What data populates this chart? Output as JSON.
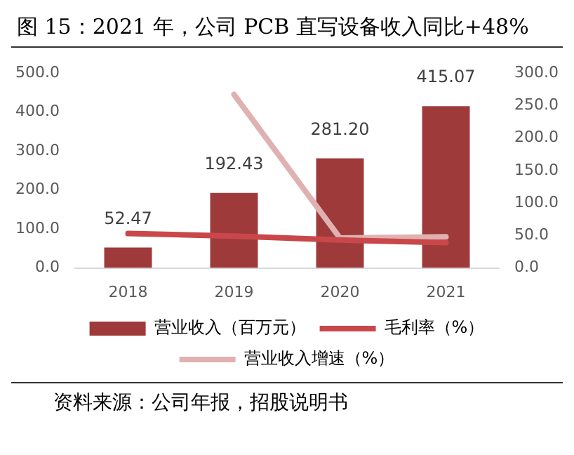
{
  "chart_data": {
    "type": "bar",
    "title": "图 15：2021 年，公司 PCB 直写设备收入同比+48%",
    "categories": [
      "2018",
      "2019",
      "2020",
      "2021"
    ],
    "series": [
      {
        "name": "营业收入（百万元）",
        "color": "#9e3a3a",
        "values": [
          52.47,
          192.43,
          281.2,
          415.07
        ]
      },
      {
        "name": "毛利率（%）",
        "type": "line",
        "axis": "y2",
        "color": "#c9474a",
        "values": [
          53,
          49,
          43,
          39
        ]
      },
      {
        "name": "营业收入增速（%）",
        "type": "line",
        "axis": "y2",
        "color": "#e0b1b1",
        "values": [
          null,
          267,
          46,
          48
        ]
      }
    ],
    "ylim": [
      0,
      500
    ],
    "yticks": [
      {
        "value": 0,
        "label": "0.0"
      },
      {
        "value": 100,
        "label": "100.0"
      },
      {
        "value": 200,
        "label": "200.0"
      },
      {
        "value": 300,
        "label": "300.0"
      },
      {
        "value": 400,
        "label": "400.0"
      },
      {
        "value": 500,
        "label": "500.0"
      }
    ],
    "y2lim": [
      0,
      300
    ],
    "y2ticks": [
      {
        "value": 0,
        "label": "0.0"
      },
      {
        "value": 50,
        "label": "50.0"
      },
      {
        "value": 100,
        "label": "100.0"
      },
      {
        "value": 150,
        "label": "150.0"
      },
      {
        "value": 200,
        "label": "200.0"
      },
      {
        "value": 250,
        "label": "250.0"
      },
      {
        "value": 300,
        "label": "300.0"
      }
    ],
    "value_labels": [
      "52.47",
      "192.43",
      "281.20",
      "415.07"
    ],
    "grid": false,
    "legend": "bottom",
    "marker": "none",
    "line_style": "solid",
    "annotations": [
      "资料来源：公司年报，招股说明书"
    ]
  }
}
